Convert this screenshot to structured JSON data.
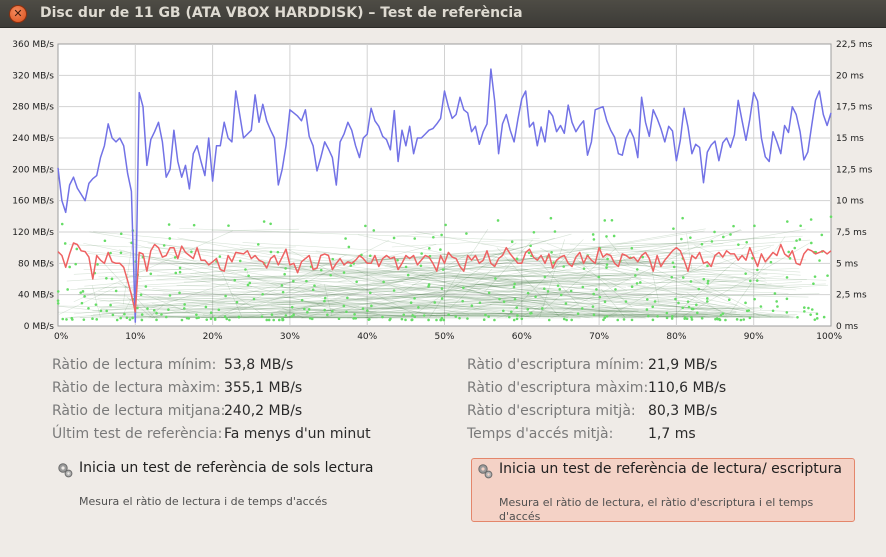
{
  "window": {
    "title": "Disc dur de 11 GB (ATA VBOX HARDDISK) – Test de referència",
    "close_icon": "close-icon"
  },
  "chart_data": {
    "type": "line",
    "left_axis": {
      "ticks": [
        "0 MB/s",
        "40 MB/s",
        "80 MB/s",
        "120 MB/s",
        "160 MB/s",
        "200 MB/s",
        "240 MB/s",
        "280 MB/s",
        "320 MB/s",
        "360 MB/s"
      ],
      "range": [
        0,
        360
      ]
    },
    "right_axis": {
      "ticks": [
        "0 ms",
        "2,5 ms",
        "5 ms",
        "7,5 ms",
        "10 ms",
        "12,5 ms",
        "15 ms",
        "17,5 ms",
        "20 ms",
        "22,5 ms"
      ],
      "range": [
        0,
        22.5
      ]
    },
    "x_axis": {
      "ticks": [
        "0%",
        "10%",
        "20%",
        "30%",
        "40%",
        "50%",
        "60%",
        "70%",
        "80%",
        "90%",
        "100%"
      ],
      "range": [
        0,
        100
      ]
    },
    "grid": true,
    "series": [
      {
        "color": "#7272e6",
        "x": [
          0,
          0.5,
          1,
          1.5,
          2,
          2.5,
          3,
          3.5,
          4,
          4.5,
          5,
          5.5,
          6,
          6.5,
          7,
          7.5,
          8,
          8.5,
          9,
          9.5,
          10,
          10.5,
          11,
          11.5,
          12,
          12.5,
          13,
          13.5,
          14,
          14.5,
          15,
          15.5,
          16,
          16.5,
          17,
          17.5,
          18,
          18.5,
          19,
          19.5,
          20,
          20.5,
          21,
          21.5,
          22,
          22.5,
          23,
          23.5,
          24,
          24.5,
          25,
          25.5,
          26,
          26.5,
          27,
          27.5,
          28,
          28.5,
          29,
          29.5,
          30,
          30.5,
          31,
          31.5,
          32,
          32.5,
          33,
          33.5,
          34,
          34.5,
          35,
          35.5,
          36,
          36.5,
          37,
          37.5,
          38,
          38.5,
          39,
          39.5,
          40,
          40.5,
          41,
          41.5,
          42,
          42.5,
          43,
          43.5,
          44,
          44.5,
          45,
          45.5,
          46,
          46.5,
          47,
          47.5,
          48,
          48.5,
          49,
          49.5,
          50,
          50.5,
          51,
          51.5,
          52,
          52.5,
          53,
          53.5,
          54,
          54.5,
          55,
          55.5,
          56,
          56.5,
          57,
          57.5,
          58,
          58.5,
          59,
          59.5,
          60,
          60.5,
          61,
          61.5,
          62,
          62.5,
          63,
          63.5,
          64,
          64.5,
          65,
          65.5,
          66,
          66.5,
          67,
          67.5,
          68,
          68.5,
          69,
          69.5,
          70,
          70.5,
          71,
          71.5,
          72,
          72.5,
          73,
          73.5,
          74,
          74.5,
          75,
          75.5,
          76,
          76.5,
          77,
          77.5,
          78,
          78.5,
          79,
          79.5,
          80,
          80.5,
          81,
          81.5,
          82,
          82.5,
          83,
          83.5,
          84,
          84.5,
          85,
          85.5,
          86,
          86.5,
          87,
          87.5,
          88,
          88.5,
          89,
          89.5,
          90,
          90.5,
          91,
          91.5,
          92,
          92.5,
          93,
          93.5,
          94,
          94.5,
          95,
          95.5,
          96,
          96.5,
          97,
          97.5,
          98,
          98.5,
          99,
          99.5,
          100
        ],
        "y": [
          202,
          160,
          145,
          180,
          190,
          176,
          168,
          160,
          182,
          188,
          192,
          215,
          230,
          258,
          240,
          235,
          240,
          230,
          195,
          172,
          5,
          298,
          280,
          205,
          238,
          248,
          260,
          235,
          190,
          200,
          250,
          210,
          190,
          205,
          175,
          220,
          230,
          210,
          192,
          240,
          185,
          230,
          230,
          260,
          240,
          235,
          300,
          270,
          240,
          245,
          250,
          295,
          260,
          283,
          262,
          250,
          240,
          180,
          200,
          230,
          276,
          272,
          268,
          262,
          276,
          242,
          230,
          198,
          215,
          235,
          226,
          215,
          180,
          235,
          245,
          260,
          250,
          230,
          215,
          240,
          245,
          278,
          262,
          255,
          242,
          238,
          225,
          275,
          210,
          250,
          230,
          255,
          220,
          240,
          240,
          245,
          250,
          252,
          258,
          265,
          300,
          280,
          265,
          270,
          292,
          276,
          272,
          248,
          255,
          232,
          248,
          258,
          328,
          287,
          220,
          258,
          270,
          250,
          235,
          264,
          290,
          300,
          254,
          260,
          230,
          254,
          235,
          275,
          268,
          248,
          256,
          246,
          282,
          260,
          248,
          256,
          262,
          218,
          235,
          276,
          278,
          280,
          262,
          250,
          241,
          220,
          218,
          240,
          251,
          240,
          215,
          292,
          260,
          242,
          276,
          265,
          252,
          235,
          255,
          249,
          211,
          237,
          278,
          254,
          220,
          232,
          228,
          183,
          222,
          231,
          236,
          211,
          234,
          240,
          228,
          244,
          288,
          262,
          237,
          264,
          298,
          287,
          240,
          216,
          210,
          248,
          235,
          220,
          256,
          247,
          280,
          270,
          248,
          212,
          222,
          256,
          288,
          300,
          270,
          256,
          272
        ]
      },
      {
        "color": "#ee6262",
        "x": [
          0,
          0.5,
          1,
          1.5,
          2,
          2.5,
          3,
          3.5,
          4,
          4.5,
          5,
          5.5,
          6,
          6.5,
          7,
          7.5,
          8,
          8.5,
          9,
          9.5,
          10,
          10.5,
          11,
          11.5,
          12,
          12.5,
          13,
          13.5,
          14,
          14.5,
          15,
          15.5,
          16,
          16.5,
          17,
          17.5,
          18,
          18.5,
          19,
          19.5,
          20,
          20.5,
          21,
          21.5,
          22,
          22.5,
          23,
          23.5,
          24,
          24.5,
          25,
          25.5,
          26,
          26.5,
          27,
          27.5,
          28,
          28.5,
          29,
          29.5,
          30,
          30.5,
          31,
          31.5,
          32,
          32.5,
          33,
          33.5,
          34,
          34.5,
          35,
          35.5,
          36,
          36.5,
          37,
          37.5,
          38,
          38.5,
          39,
          39.5,
          40,
          40.5,
          41,
          41.5,
          42,
          42.5,
          43,
          43.5,
          44,
          44.5,
          45,
          45.5,
          46,
          46.5,
          47,
          47.5,
          48,
          48.5,
          49,
          49.5,
          50,
          50.5,
          51,
          51.5,
          52,
          52.5,
          53,
          53.5,
          54,
          54.5,
          55,
          55.5,
          56,
          56.5,
          57,
          57.5,
          58,
          58.5,
          59,
          59.5,
          60,
          60.5,
          61,
          61.5,
          62,
          62.5,
          63,
          63.5,
          64,
          64.5,
          65,
          65.5,
          66,
          66.5,
          67,
          67.5,
          68,
          68.5,
          69,
          69.5,
          70,
          70.5,
          71,
          71.5,
          72,
          72.5,
          73,
          73.5,
          74,
          74.5,
          75,
          75.5,
          76,
          76.5,
          77,
          77.5,
          78,
          78.5,
          79,
          79.5,
          80,
          80.5,
          81,
          81.5,
          82,
          82.5,
          83,
          83.5,
          84,
          84.5,
          85,
          85.5,
          86,
          86.5,
          87,
          87.5,
          88,
          88.5,
          89,
          89.5,
          90,
          90.5,
          91,
          91.5,
          92,
          92.5,
          93,
          93.5,
          94,
          94.5,
          95,
          95.5,
          96,
          96.5,
          97,
          97.5,
          98,
          98.5,
          99,
          99.5,
          100
        ],
        "y": [
          95,
          90,
          75,
          92,
          106,
          104,
          96,
          95,
          88,
          60,
          90,
          84,
          80,
          94,
          82,
          80,
          80,
          75,
          58,
          40,
          18,
          94,
          92,
          70,
          96,
          104,
          100,
          88,
          90,
          100,
          100,
          86,
          102,
          94,
          90,
          86,
          100,
          84,
          84,
          78,
          82,
          86,
          72,
          70,
          90,
          82,
          94,
          93,
          92,
          96,
          86,
          90,
          84,
          82,
          74,
          86,
          90,
          78,
          88,
          98,
          78,
          80,
          68,
          82,
          86,
          90,
          72,
          74,
          90,
          92,
          90,
          72,
          80,
          86,
          78,
          82,
          80,
          84,
          90,
          86,
          80,
          80,
          90,
          76,
          86,
          90,
          86,
          88,
          72,
          80,
          90,
          86,
          90,
          78,
          84,
          90,
          88,
          80,
          70,
          90,
          80,
          94,
          88,
          86,
          76,
          70,
          90,
          84,
          90,
          80,
          84,
          96,
          80,
          76,
          86,
          90,
          100,
          92,
          86,
          80,
          80,
          94,
          98,
          88,
          84,
          90,
          80,
          92,
          74,
          84,
          88,
          90,
          80,
          76,
          88,
          94,
          80,
          90,
          84,
          80,
          100,
          88,
          92,
          90,
          80,
          76,
          92,
          90,
          86,
          88,
          82,
          90,
          94,
          86,
          70,
          90,
          76,
          84,
          90,
          96,
          100,
          96,
          84,
          70,
          90,
          86,
          94,
          80,
          82,
          76,
          90,
          94,
          88,
          96,
          92,
          92,
          84,
          90,
          84,
          100,
          88,
          76,
          92,
          82,
          88,
          94,
          90,
          104,
          92,
          88,
          96,
          80,
          78,
          92,
          98,
          96,
          92,
          94,
          96,
          92,
          96
        ]
      }
    ]
  },
  "stats": {
    "read_min_label": "Ràtio de lectura mínim:",
    "read_min_value": "53,8 MB/s",
    "read_max_label": "Ràtio de lectura màxim:",
    "read_max_value": "355,1 MB/s",
    "read_avg_label": "Ràtio de lectura mitjana:",
    "read_avg_value": "240,2 MB/s",
    "last_test_label": "Últim test de referència:",
    "last_test_value": "Fa menys d'un minut",
    "write_min_label": "Ràtio d'escriptura mínim:",
    "write_min_value": "21,9 MB/s",
    "write_max_label": "Ràtio d'escriptura màxim:",
    "write_max_value": "110,6 MB/s",
    "write_avg_label": "Ràtio d'escriptura mitjà:",
    "write_avg_value": "80,3 MB/s",
    "access_label": "Temps d'accés mitjà:",
    "access_value": "1,7 ms"
  },
  "actions": {
    "read_only": {
      "title": "Inicia un test de referència de sols lectura",
      "desc": "Mesura el ràtio de lectura i de temps d'accés",
      "icon": "gears-icon"
    },
    "read_write": {
      "title": "Inicia un test de referència de lectura/ escriptura",
      "desc": "Mesura el ràtio de lectura, el ràtio d'escriptura i el temps d'accés",
      "icon": "gears-icon"
    }
  }
}
